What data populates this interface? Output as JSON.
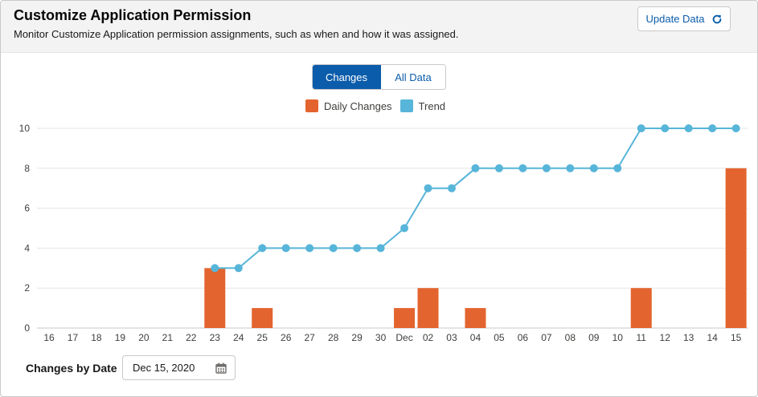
{
  "header": {
    "title": "Customize Application Permission",
    "subtitle": "Monitor Customize Application permission assignments, such as when and how it was assigned.",
    "update_label": "Update Data"
  },
  "tabs": [
    {
      "label": "Changes",
      "selected": true
    },
    {
      "label": "All Data",
      "selected": false
    }
  ],
  "legend": [
    {
      "label": "Daily Changes",
      "color": "#e3642f"
    },
    {
      "label": "Trend",
      "color": "#57b5d9"
    }
  ],
  "footer": {
    "label": "Changes by Date",
    "date_value": "Dec 15, 2020"
  },
  "chart_data": {
    "type": "bar",
    "categories": [
      "16",
      "17",
      "18",
      "19",
      "20",
      "21",
      "22",
      "23",
      "24",
      "25",
      "26",
      "27",
      "28",
      "29",
      "30",
      "Dec",
      "02",
      "03",
      "04",
      "05",
      "06",
      "07",
      "08",
      "09",
      "10",
      "11",
      "12",
      "13",
      "14",
      "15"
    ],
    "series": [
      {
        "name": "Daily Changes",
        "type": "bar",
        "color": "#e3642f",
        "values": [
          0,
          0,
          0,
          0,
          0,
          0,
          0,
          3,
          0,
          1,
          0,
          0,
          0,
          0,
          0,
          1,
          2,
          0,
          1,
          0,
          0,
          0,
          0,
          0,
          0,
          2,
          0,
          0,
          0,
          8
        ]
      },
      {
        "name": "Trend",
        "type": "line",
        "color": "#57b5d9",
        "values": [
          null,
          null,
          null,
          null,
          null,
          null,
          null,
          3,
          3,
          4,
          4,
          4,
          4,
          4,
          4,
          5,
          7,
          7,
          8,
          8,
          8,
          8,
          8,
          8,
          8,
          10,
          10,
          10,
          10,
          10
        ]
      }
    ],
    "yticks": [
      0,
      2,
      4,
      6,
      8,
      10
    ],
    "ylim": [
      0,
      10
    ],
    "grid": true,
    "legend_position": "top-center"
  }
}
